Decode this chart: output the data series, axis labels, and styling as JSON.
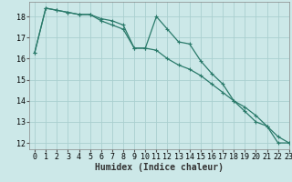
{
  "title": "",
  "xlabel": "Humidex (Indice chaleur)",
  "background_color": "#cce8e8",
  "grid_color": "#aacfcf",
  "line_color": "#2a7a6a",
  "x_line1": [
    0,
    1,
    2,
    3,
    4,
    5,
    6,
    7,
    8,
    9,
    10,
    11,
    12,
    13,
    14,
    15,
    16,
    17,
    18,
    19,
    20,
    21,
    22,
    23
  ],
  "y_line1": [
    16.3,
    18.4,
    18.3,
    18.2,
    18.1,
    18.1,
    17.9,
    17.8,
    17.6,
    16.5,
    16.5,
    18.0,
    17.4,
    16.8,
    16.7,
    15.9,
    15.3,
    14.8,
    14.0,
    13.5,
    13.0,
    12.8,
    12.0,
    12.0
  ],
  "x_line2": [
    0,
    1,
    2,
    3,
    4,
    5,
    6,
    7,
    8,
    9,
    10,
    11,
    12,
    13,
    14,
    15,
    16,
    17,
    18,
    19,
    20,
    21,
    22,
    23
  ],
  "y_line2": [
    16.3,
    18.4,
    18.3,
    18.2,
    18.1,
    18.1,
    17.8,
    17.6,
    17.4,
    16.5,
    16.5,
    16.4,
    16.0,
    15.7,
    15.5,
    15.2,
    14.8,
    14.4,
    14.0,
    13.7,
    13.3,
    12.8,
    12.3,
    12.0
  ],
  "ylim": [
    11.7,
    18.7
  ],
  "xlim": [
    -0.5,
    23
  ],
  "yticks": [
    12,
    13,
    14,
    15,
    16,
    17,
    18
  ],
  "xticks": [
    0,
    1,
    2,
    3,
    4,
    5,
    6,
    7,
    8,
    9,
    10,
    11,
    12,
    13,
    14,
    15,
    16,
    17,
    18,
    19,
    20,
    21,
    22,
    23
  ],
  "marker": "+",
  "linewidth": 0.9,
  "markersize": 3,
  "fontsize_label": 7,
  "fontsize_tick": 6
}
